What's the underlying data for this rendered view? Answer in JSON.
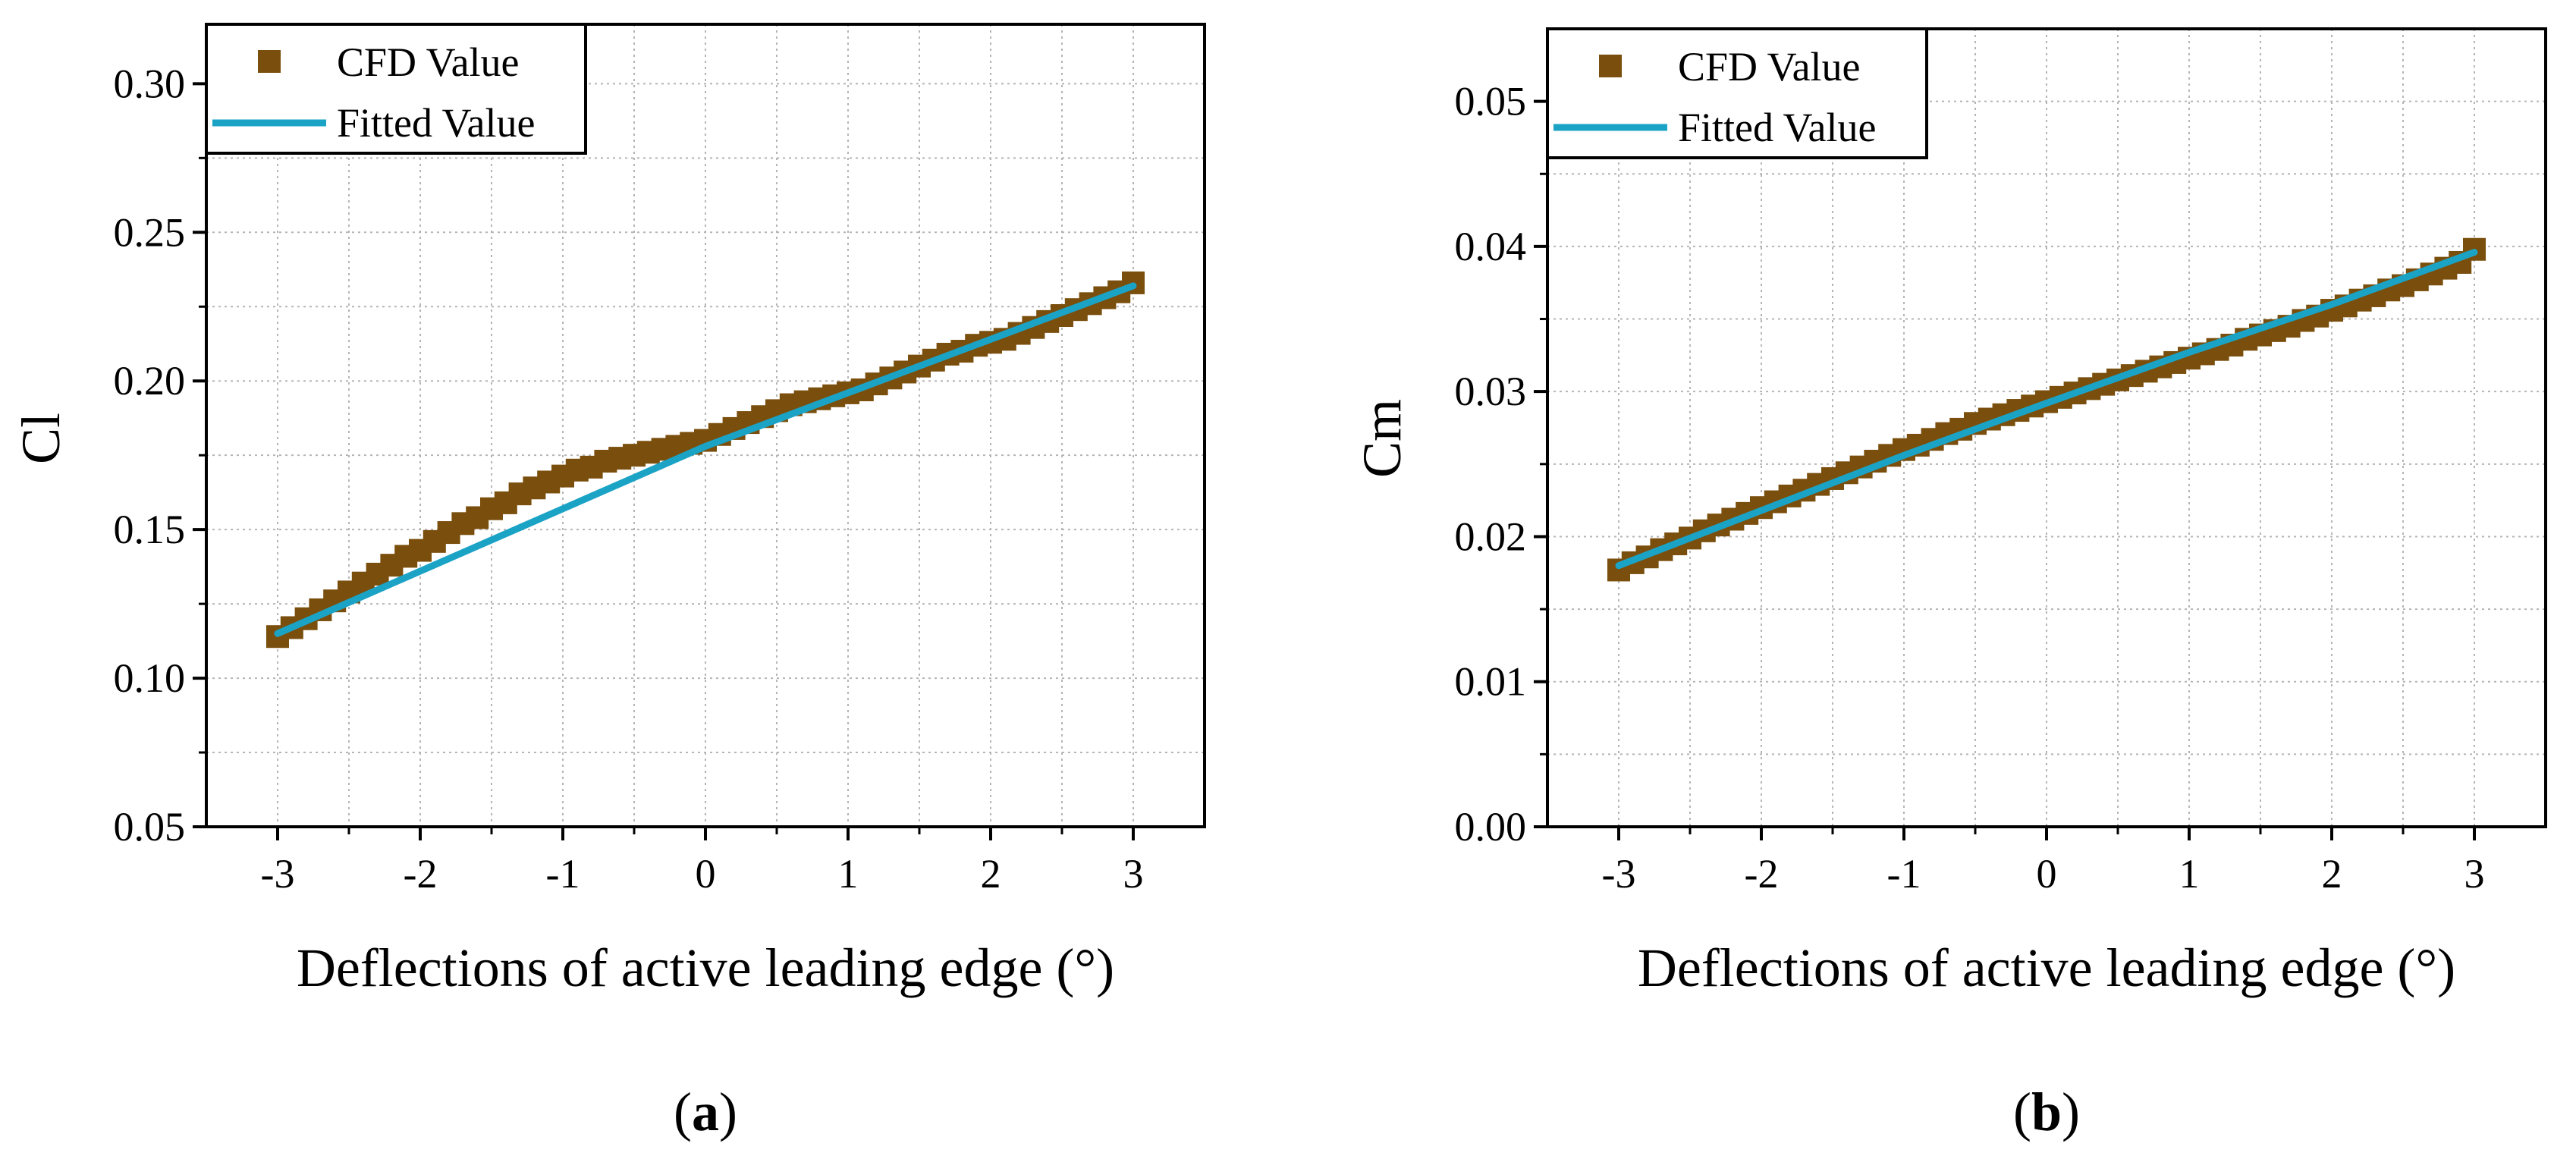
{
  "colors": {
    "marker": "#7a4e0c",
    "fit": "#1ba3c6",
    "grid": "#b5b5b5",
    "axis": "#000000"
  },
  "chart_data": [
    {
      "id": "a",
      "type": "scatter",
      "panel_label": "a",
      "xlabel": "Deflections of active leading edge (°)",
      "ylabel": "Cl",
      "xlim": [
        -3.5,
        3.5
      ],
      "ylim": [
        0.05,
        0.32
      ],
      "xticks": [
        -3,
        -2,
        -1,
        0,
        1,
        2,
        3
      ],
      "xtick_labels": [
        "-3",
        "-2",
        "-1",
        "0",
        "1",
        "2",
        "3"
      ],
      "yticks": [
        0.05,
        0.1,
        0.15,
        0.2,
        0.25,
        0.3
      ],
      "ytick_labels": [
        "0.05",
        "0.10",
        "0.15",
        "0.20",
        "0.25",
        "0.30"
      ],
      "grid": true,
      "legend_position": "top-left",
      "series": [
        {
          "name": "CFD Value",
          "kind": "scatter",
          "color": "#7a4e0c",
          "marker": "square",
          "x": [
            -3.0,
            -2.9,
            -2.8,
            -2.7,
            -2.6,
            -2.5,
            -2.4,
            -2.3,
            -2.2,
            -2.1,
            -2.0,
            -1.9,
            -1.8,
            -1.7,
            -1.6,
            -1.5,
            -1.4,
            -1.3,
            -1.2,
            -1.1,
            -1.0,
            -0.9,
            -0.8,
            -0.7,
            -0.6,
            -0.5,
            -0.4,
            -0.3,
            -0.2,
            -0.1,
            0.0,
            0.1,
            0.2,
            0.3,
            0.4,
            0.5,
            0.6,
            0.7,
            0.8,
            0.9,
            1.0,
            1.1,
            1.2,
            1.3,
            1.4,
            1.5,
            1.6,
            1.7,
            1.8,
            1.9,
            2.0,
            2.1,
            2.2,
            2.3,
            2.4,
            2.5,
            2.6,
            2.7,
            2.8,
            2.9,
            3.0
          ],
          "y": [
            0.114,
            0.117,
            0.12,
            0.123,
            0.126,
            0.129,
            0.132,
            0.135,
            0.138,
            0.141,
            0.143,
            0.146,
            0.149,
            0.152,
            0.154,
            0.157,
            0.159,
            0.162,
            0.164,
            0.166,
            0.168,
            0.17,
            0.171,
            0.173,
            0.174,
            0.175,
            0.176,
            0.177,
            0.178,
            0.179,
            0.18,
            0.182,
            0.184,
            0.186,
            0.188,
            0.19,
            0.192,
            0.193,
            0.194,
            0.195,
            0.196,
            0.197,
            0.199,
            0.201,
            0.203,
            0.205,
            0.207,
            0.209,
            0.21,
            0.212,
            0.213,
            0.214,
            0.216,
            0.218,
            0.22,
            0.222,
            0.224,
            0.226,
            0.228,
            0.23,
            0.233
          ]
        },
        {
          "name": "Fitted Value",
          "kind": "line",
          "color": "#1ba3c6",
          "x": [
            -3.0,
            -2.0,
            -1.0,
            0.0,
            1.0,
            2.0,
            3.0
          ],
          "y": [
            0.115,
            0.136,
            0.157,
            0.178,
            0.196,
            0.214,
            0.232
          ]
        }
      ]
    },
    {
      "id": "b",
      "type": "scatter",
      "panel_label": "b",
      "xlabel": "Deflections of active leading edge (°)",
      "ylabel": "Cm",
      "xlim": [
        -3.5,
        3.5
      ],
      "ylim": [
        0.0,
        0.055
      ],
      "xticks": [
        -3,
        -2,
        -1,
        0,
        1,
        2,
        3
      ],
      "xtick_labels": [
        "-3",
        "-2",
        "-1",
        "0",
        "1",
        "2",
        "3"
      ],
      "yticks": [
        0.0,
        0.01,
        0.02,
        0.03,
        0.04,
        0.05
      ],
      "ytick_labels": [
        "0.00",
        "0.01",
        "0.02",
        "0.03",
        "0.04",
        "0.05"
      ],
      "grid": true,
      "legend_position": "top-left",
      "series": [
        {
          "name": "CFD Value",
          "kind": "scatter",
          "color": "#7a4e0c",
          "marker": "square",
          "x": [
            -3.0,
            -2.9,
            -2.8,
            -2.7,
            -2.6,
            -2.5,
            -2.4,
            -2.3,
            -2.2,
            -2.1,
            -2.0,
            -1.9,
            -1.8,
            -1.7,
            -1.6,
            -1.5,
            -1.4,
            -1.3,
            -1.2,
            -1.1,
            -1.0,
            -0.9,
            -0.8,
            -0.7,
            -0.6,
            -0.5,
            -0.4,
            -0.3,
            -0.2,
            -0.1,
            0.0,
            0.1,
            0.2,
            0.3,
            0.4,
            0.5,
            0.6,
            0.7,
            0.8,
            0.9,
            1.0,
            1.1,
            1.2,
            1.3,
            1.4,
            1.5,
            1.6,
            1.7,
            1.8,
            1.9,
            2.0,
            2.1,
            2.2,
            2.3,
            2.4,
            2.5,
            2.6,
            2.7,
            2.8,
            2.9,
            3.0
          ],
          "y": [
            0.0177,
            0.0182,
            0.0186,
            0.0191,
            0.0195,
            0.0199,
            0.0204,
            0.0208,
            0.0212,
            0.0216,
            0.022,
            0.0224,
            0.0228,
            0.0232,
            0.0236,
            0.024,
            0.0244,
            0.0248,
            0.0252,
            0.0256,
            0.026,
            0.0263,
            0.0267,
            0.0271,
            0.0274,
            0.0278,
            0.0281,
            0.0284,
            0.0287,
            0.029,
            0.0293,
            0.0296,
            0.0299,
            0.0302,
            0.0305,
            0.0308,
            0.0311,
            0.0314,
            0.0317,
            0.032,
            0.0323,
            0.0326,
            0.0329,
            0.0332,
            0.0336,
            0.0339,
            0.0342,
            0.0345,
            0.0349,
            0.0352,
            0.0356,
            0.0359,
            0.0363,
            0.0366,
            0.037,
            0.0373,
            0.0377,
            0.0381,
            0.0385,
            0.0389,
            0.0398
          ]
        },
        {
          "name": "Fitted Value",
          "kind": "line",
          "color": "#1ba3c6",
          "x": [
            -3.0,
            -2.0,
            -1.0,
            0.0,
            1.0,
            2.0,
            3.0
          ],
          "y": [
            0.018,
            0.0218,
            0.0256,
            0.0292,
            0.0327,
            0.036,
            0.0396
          ]
        }
      ]
    }
  ]
}
